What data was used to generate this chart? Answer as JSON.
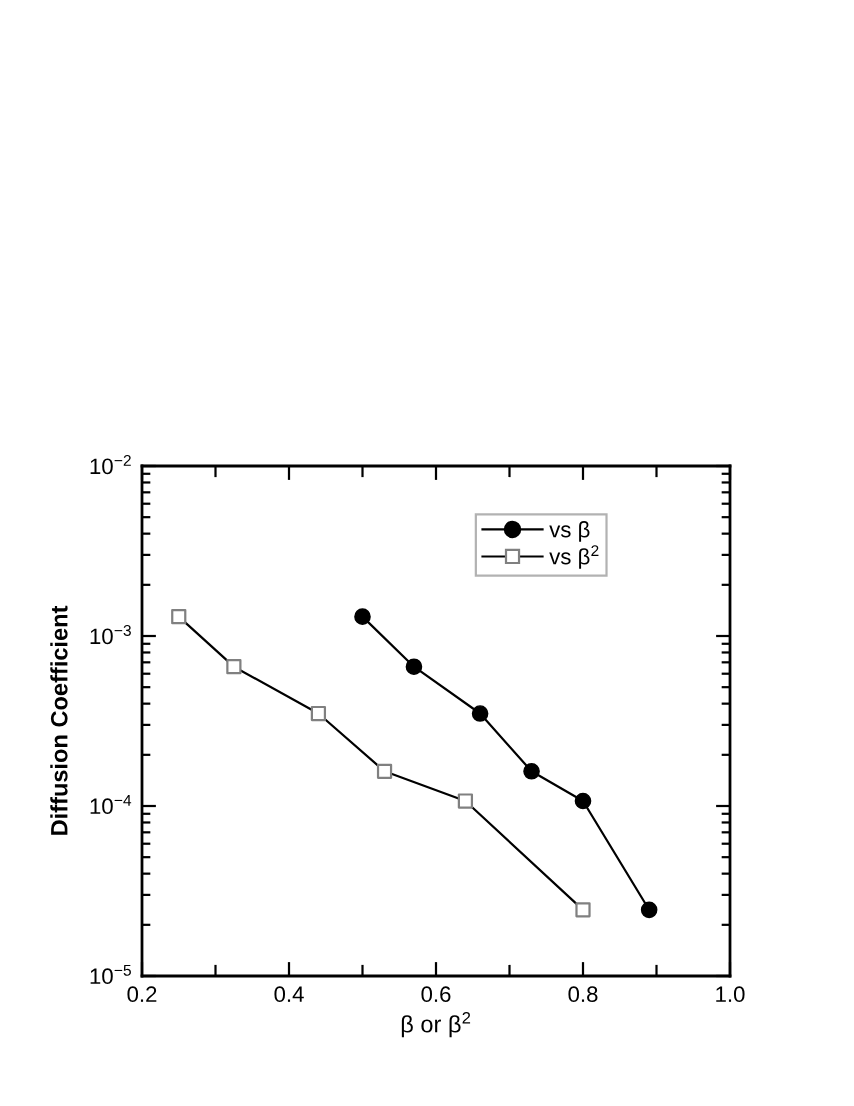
{
  "chart_data": {
    "type": "line",
    "xlabel": "β or β$^{2}$",
    "ylabel": "Diffusion Coefficient",
    "log": "y",
    "xlim": [
      0.2,
      1.0
    ],
    "xticks": [
      0.2,
      {
        "value": 0.3,
        "label": null
      },
      0.4,
      {
        "value": 0.5,
        "label": null
      },
      0.6,
      {
        "value": 0.7,
        "label": null
      },
      0.8,
      {
        "value": 0.9,
        "label": null
      },
      {
        "value": 1.0,
        "label": "1.0"
      }
    ],
    "ylim": [
      1e-05,
      0.01
    ],
    "yticks": [
      {
        "value": 1e-05,
        "label": "10$^{−5}$"
      },
      {
        "value": 0.0001,
        "label": "10$^{−4}$"
      },
      {
        "value": 0.001,
        "label": "10$^{−3}$"
      },
      {
        "value": 0.01,
        "label": "10$^{−2}$"
      }
    ],
    "legend": "top right",
    "grid": false,
    "series": [
      {
        "name": "vs β",
        "color": "#000000",
        "marker": "circle",
        "colors": [
          "#000000",
          "#000000",
          "#000000",
          "#000000",
          "#000000",
          "#000000"
        ],
        "x": [
          0.5,
          0.57,
          0.66,
          0.73,
          0.8,
          0.89
        ],
        "values": [
          0.0013,
          0.00066,
          0.00035,
          0.00016,
          0.000107,
          2.45e-05
        ]
      },
      {
        "name": "vs β$^{2}$",
        "color": "#000000",
        "marker": "square",
        "colors": [
          "#808080",
          "#808080",
          "#808080",
          "#808080",
          "#808080",
          "#808080"
        ],
        "x": [
          0.25,
          0.325,
          0.44,
          0.53,
          0.64,
          0.8
        ],
        "values": [
          0.0013,
          0.00066,
          0.00035,
          0.00016,
          0.000107,
          2.45e-05
        ]
      }
    ]
  }
}
